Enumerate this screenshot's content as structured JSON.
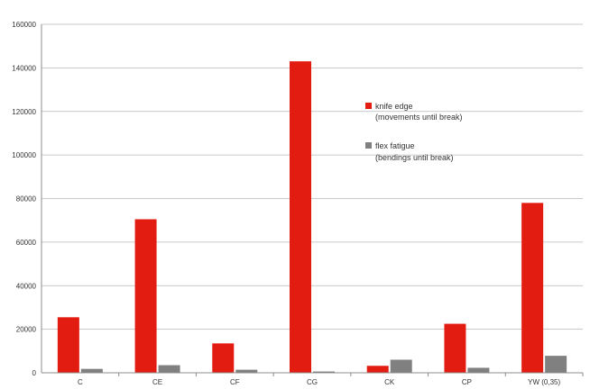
{
  "chart_data": {
    "type": "bar",
    "title": "",
    "xlabel": "",
    "ylabel": "",
    "categories": [
      "C",
      "CE",
      "CF",
      "CG",
      "CK",
      "CP",
      "YW (0,35)"
    ],
    "series": [
      {
        "name": "knife edge",
        "legend_sub": "(movements until break)",
        "color": "#e31c12",
        "values": [
          25500,
          70500,
          13500,
          143000,
          3200,
          22500,
          78000
        ]
      },
      {
        "name": "flex fatigue",
        "legend_sub": "(bendings until break)",
        "color": "#808080",
        "values": [
          1800,
          3500,
          1400,
          600,
          6000,
          2300,
          7800
        ]
      }
    ],
    "y_ticks": [
      "0",
      "20000",
      "40000",
      "60000",
      "80000",
      "100000",
      "120000",
      "140000",
      "160000"
    ],
    "ylim": [
      0,
      160000
    ],
    "grid": true,
    "legend_position": "right"
  }
}
